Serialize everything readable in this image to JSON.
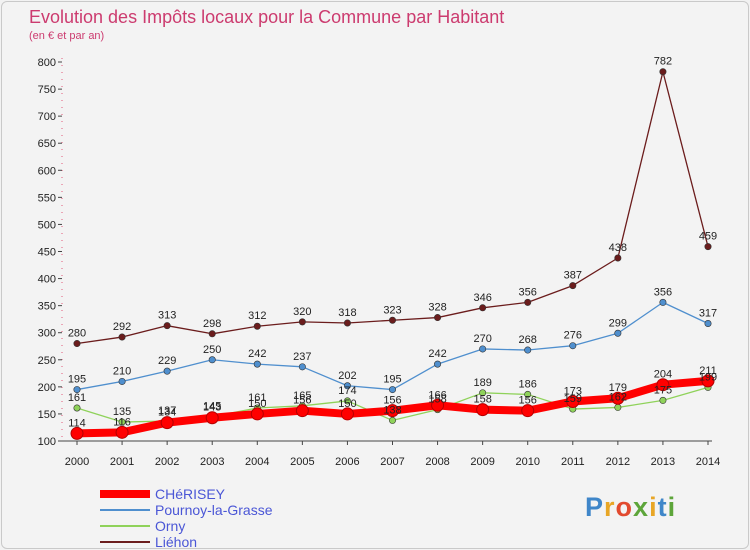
{
  "header": {
    "title": "Evolution des Impôts locaux pour la Commune par Habitant",
    "subtitle": "(en € et par an)"
  },
  "logo": {
    "text": "Proxiti",
    "colors": [
      "#3f86c9",
      "#e8a626",
      "#e24a2f",
      "#5da53a",
      "#e8a626",
      "#3f86c9",
      "#5da53a"
    ]
  },
  "chart_data": {
    "type": "line",
    "x": [
      "2000",
      "2001",
      "2002",
      "2003",
      "2004",
      "2005",
      "2006",
      "2007",
      "2008",
      "2009",
      "2010",
      "2011",
      "2012",
      "2013",
      "2014"
    ],
    "ylim": [
      100,
      800
    ],
    "yticks": [
      100,
      150,
      200,
      250,
      300,
      350,
      400,
      450,
      500,
      550,
      600,
      650,
      700,
      750,
      800
    ],
    "grid": false,
    "legend_position": "bottom-left",
    "series": [
      {
        "name": "CHéRISEY",
        "color": "#ff0000",
        "values": [
          114,
          116,
          134,
          143,
          150,
          156,
          150,
          156,
          166,
          158,
          156,
          173,
          179,
          204,
          211
        ]
      },
      {
        "name": "Pournoy-la-Grasse",
        "color": "#4f8fce",
        "values": [
          195,
          210,
          229,
          250,
          242,
          237,
          202,
          195,
          242,
          270,
          268,
          276,
          299,
          356,
          317
        ]
      },
      {
        "name": "Orny",
        "color": "#8fd25a",
        "values": [
          161,
          135,
          137,
          145,
          161,
          165,
          174,
          138,
          158,
          189,
          186,
          159,
          162,
          175,
          199
        ]
      },
      {
        "name": "Liéhon",
        "color": "#6b1c1c",
        "values": [
          280,
          292,
          313,
          298,
          312,
          320,
          318,
          323,
          328,
          346,
          356,
          387,
          438,
          782,
          459
        ]
      }
    ]
  }
}
